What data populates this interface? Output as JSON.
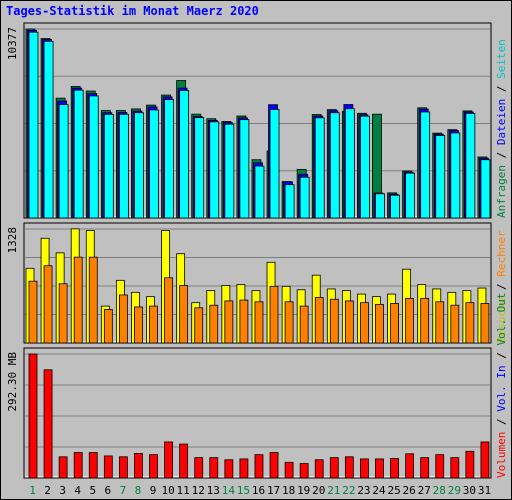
{
  "title": "Tages-Statistik im Monat Maerz 2020",
  "colors": {
    "background": "#c0c0c0",
    "plot_background": "#c0c0c0",
    "title": "#0000ff",
    "anfragen": "#008040",
    "dateien": "#0000ff",
    "seiten": "#00ffff",
    "besuche": "#ffff00",
    "rechner": "#ff8000",
    "volumen": "#ff0000",
    "grid": "#808080"
  },
  "right_legends": {
    "top": [
      {
        "text": "Anfragen",
        "color": "#008040"
      },
      {
        "text": " / ",
        "color": "#000000"
      },
      {
        "text": "Dateien",
        "color": "#0000ff"
      },
      {
        "text": " / ",
        "color": "#000000"
      },
      {
        "text": "Seiten",
        "color": "#00c0c0"
      }
    ],
    "middle": [
      {
        "text": "Besuche",
        "color": "#c0c000"
      },
      {
        "text": " / ",
        "color": "#000000"
      },
      {
        "text": "Rechner",
        "color": "#ff8000"
      }
    ],
    "bottom": [
      {
        "text": "Volumen",
        "color": "#ff0000"
      },
      {
        "text": " / ",
        "color": "#000000"
      },
      {
        "text": "Vol. In",
        "color": "#0000ff"
      },
      {
        "text": " / ",
        "color": "#000000"
      },
      {
        "text": "Vol. Out",
        "color": "#008040"
      }
    ]
  },
  "chart_data": [
    {
      "type": "bar",
      "panel": "top",
      "y_max_label": "10377",
      "ylim": [
        0,
        10377
      ],
      "categories": [
        "1",
        "2",
        "3",
        "4",
        "5",
        "6",
        "7",
        "8",
        "9",
        "10",
        "11",
        "12",
        "13",
        "14",
        "15",
        "16",
        "17",
        "18",
        "19",
        "20",
        "21",
        "22",
        "23",
        "24",
        "25",
        "26",
        "27",
        "28",
        "29",
        "30",
        "31"
      ],
      "weekend_days": [
        "1",
        "7",
        "8",
        "14",
        "15",
        "21",
        "22",
        "28",
        "29"
      ],
      "series": [
        {
          "name": "Anfragen",
          "values": [
            10377,
            9850,
            6580,
            7220,
            6970,
            5900,
            5900,
            5990,
            6200,
            6750,
            7550,
            5700,
            5450,
            5300,
            5600,
            3200,
            3680,
            2000,
            2670,
            5680,
            5950,
            5850,
            5750,
            5700,
            1380,
            2580,
            6050,
            4660,
            4850,
            5880,
            3350
          ]
        },
        {
          "name": "Dateien",
          "values": [
            10300,
            9800,
            6420,
            7130,
            6830,
            5780,
            5790,
            5870,
            6100,
            6650,
            7130,
            5570,
            5360,
            5240,
            5500,
            3030,
            6220,
            1980,
            2400,
            5600,
            5890,
            6230,
            5670,
            1370,
            1310,
            2520,
            5980,
            4600,
            4800,
            5820,
            3280
          ]
        },
        {
          "name": "Seiten",
          "values": [
            10200,
            9700,
            6230,
            7020,
            6700,
            5690,
            5690,
            5780,
            5930,
            6500,
            7000,
            5510,
            5280,
            5150,
            5400,
            2850,
            5960,
            1830,
            2240,
            5500,
            5780,
            6000,
            5590,
            1330,
            1250,
            2460,
            5820,
            4530,
            4670,
            5740,
            3200
          ]
        }
      ]
    },
    {
      "type": "bar",
      "panel": "middle",
      "y_max_label": "1328",
      "ylim": [
        0,
        1328
      ],
      "categories": [
        "1",
        "2",
        "3",
        "4",
        "5",
        "6",
        "7",
        "8",
        "9",
        "10",
        "11",
        "12",
        "13",
        "14",
        "15",
        "16",
        "17",
        "18",
        "19",
        "20",
        "21",
        "22",
        "23",
        "24",
        "25",
        "26",
        "27",
        "28",
        "29",
        "30",
        "31"
      ],
      "series": [
        {
          "name": "Besuche",
          "values": [
            870,
            1220,
            1050,
            1330,
            1310,
            430,
            730,
            590,
            540,
            1310,
            1040,
            470,
            610,
            670,
            680,
            610,
            940,
            660,
            620,
            790,
            630,
            610,
            570,
            540,
            570,
            860,
            680,
            630,
            590,
            610,
            640
          ]
        },
        {
          "name": "Rechner",
          "values": [
            720,
            900,
            690,
            1000,
            1000,
            390,
            560,
            420,
            430,
            760,
            670,
            410,
            440,
            490,
            500,
            480,
            660,
            480,
            430,
            530,
            510,
            490,
            470,
            450,
            460,
            520,
            520,
            480,
            440,
            470,
            460
          ]
        }
      ]
    },
    {
      "type": "bar",
      "panel": "bottom",
      "y_max_label": "292.30 MB",
      "ylim": [
        0,
        292.3
      ],
      "categories": [
        "1",
        "2",
        "3",
        "4",
        "5",
        "6",
        "7",
        "8",
        "9",
        "10",
        "11",
        "12",
        "13",
        "14",
        "15",
        "16",
        "17",
        "18",
        "19",
        "20",
        "21",
        "22",
        "23",
        "24",
        "25",
        "26",
        "27",
        "28",
        "29",
        "30",
        "31"
      ],
      "series": [
        {
          "name": "Volumen",
          "values": [
            292.3,
            255,
            50,
            60,
            60,
            52,
            50,
            58,
            55,
            85,
            80,
            48,
            48,
            43,
            45,
            55,
            60,
            37,
            34,
            43,
            48,
            50,
            45,
            45,
            46,
            57,
            48,
            55,
            48,
            63,
            85
          ]
        }
      ]
    }
  ]
}
